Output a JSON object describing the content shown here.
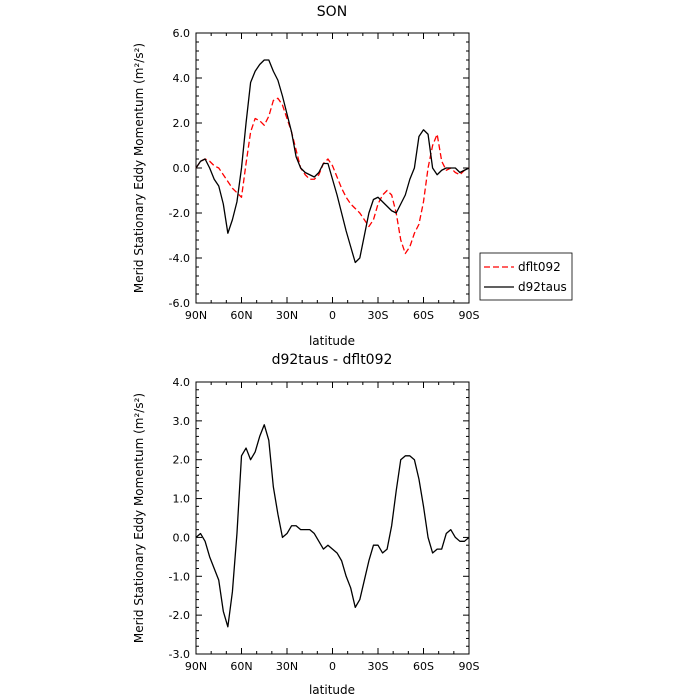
{
  "chart_data": [
    {
      "type": "line",
      "title": "SON",
      "xlabel": "latitude",
      "ylabel": "Merid Stationary Eddy Momentum (m²/s²)",
      "xlim": [
        90,
        -90
      ],
      "ylim": [
        -6,
        6
      ],
      "x_ticks": [
        90,
        60,
        30,
        0,
        -30,
        -60,
        -90
      ],
      "x_tick_labels": [
        "90N",
        "60N",
        "30N",
        "0",
        "30S",
        "60S",
        "90S"
      ],
      "y_ticks": [
        -6,
        -4,
        -2,
        0,
        2,
        4,
        6
      ],
      "y_tick_labels": [
        "-6.0",
        "-4.0",
        "-2.0",
        "0.0",
        "2.0",
        "4.0",
        "6.0"
      ],
      "grid": false,
      "legend_position": "outside-right",
      "series": [
        {
          "name": "dflt092",
          "color": "#ff0000",
          "style": "dashed",
          "x": [
            90,
            87,
            84,
            81,
            78,
            75,
            72,
            69,
            66,
            63,
            60,
            57,
            54,
            51,
            48,
            45,
            42,
            39,
            36,
            33,
            30,
            27,
            24,
            21,
            18,
            15,
            12,
            9,
            6,
            3,
            0,
            -3,
            -6,
            -9,
            -12,
            -15,
            -18,
            -21,
            -24,
            -27,
            -30,
            -33,
            -36,
            -39,
            -42,
            -45,
            -48,
            -51,
            -54,
            -57,
            -60,
            -63,
            -66,
            -69,
            -72,
            -75,
            -78,
            -81,
            -84,
            -87,
            -90
          ],
          "y": [
            0.0,
            0.3,
            0.4,
            0.3,
            0.1,
            0.0,
            -0.3,
            -0.6,
            -0.9,
            -1.1,
            -1.3,
            0.2,
            1.6,
            2.2,
            2.1,
            1.9,
            2.3,
            3.0,
            3.1,
            2.8,
            2.2,
            1.6,
            0.8,
            0.0,
            -0.3,
            -0.5,
            -0.5,
            -0.3,
            0.2,
            0.4,
            0.1,
            -0.4,
            -0.9,
            -1.3,
            -1.6,
            -1.8,
            -2.0,
            -2.3,
            -2.6,
            -2.3,
            -1.6,
            -1.2,
            -1.0,
            -1.2,
            -2.0,
            -3.2,
            -3.8,
            -3.5,
            -2.9,
            -2.5,
            -1.5,
            0.0,
            1.0,
            1.5,
            0.3,
            -0.1,
            0.0,
            -0.2,
            -0.3,
            -0.1,
            0.0
          ]
        },
        {
          "name": "d92taus",
          "color": "#000000",
          "style": "solid",
          "x": [
            90,
            87,
            84,
            81,
            78,
            75,
            72,
            69,
            66,
            63,
            60,
            57,
            54,
            51,
            48,
            45,
            42,
            39,
            36,
            33,
            30,
            27,
            24,
            21,
            18,
            15,
            12,
            9,
            6,
            3,
            0,
            -3,
            -6,
            -9,
            -12,
            -15,
            -18,
            -21,
            -24,
            -27,
            -30,
            -33,
            -36,
            -39,
            -42,
            -45,
            -48,
            -51,
            -54,
            -57,
            -60,
            -63,
            -66,
            -69,
            -72,
            -75,
            -78,
            -81,
            -84,
            -87,
            -90
          ],
          "y": [
            0.0,
            0.3,
            0.4,
            0.0,
            -0.5,
            -0.8,
            -1.6,
            -2.9,
            -2.3,
            -1.5,
            0.0,
            2.0,
            3.8,
            4.3,
            4.6,
            4.8,
            4.8,
            4.3,
            3.9,
            3.2,
            2.4,
            1.6,
            0.5,
            0.0,
            -0.2,
            -0.3,
            -0.4,
            -0.2,
            0.2,
            0.2,
            -0.5,
            -1.2,
            -2.0,
            -2.8,
            -3.5,
            -4.2,
            -4.0,
            -3.0,
            -2.0,
            -1.4,
            -1.3,
            -1.5,
            -1.7,
            -1.9,
            -2.0,
            -1.6,
            -1.2,
            -0.5,
            0.0,
            1.4,
            1.7,
            1.5,
            0.0,
            -0.3,
            -0.1,
            0.0,
            0.0,
            0.0,
            -0.2,
            -0.1,
            0.0
          ]
        }
      ]
    },
    {
      "type": "line",
      "title": "d92taus - dflt092",
      "xlabel": "latitude",
      "ylabel": "Merid Stationary Eddy Momentum (m²/s²)",
      "xlim": [
        90,
        -90
      ],
      "ylim": [
        -3,
        4
      ],
      "x_ticks": [
        90,
        60,
        30,
        0,
        -30,
        -60,
        -90
      ],
      "x_tick_labels": [
        "90N",
        "60N",
        "30N",
        "0",
        "30S",
        "60S",
        "90S"
      ],
      "y_ticks": [
        -3,
        -2,
        -1,
        0,
        1,
        2,
        3,
        4
      ],
      "y_tick_labels": [
        "-3.0",
        "-2.0",
        "-1.0",
        "0.0",
        "1.0",
        "2.0",
        "3.0",
        "4.0"
      ],
      "grid": false,
      "series": [
        {
          "color": "#000000",
          "style": "solid",
          "x": [
            90,
            87,
            84,
            81,
            78,
            75,
            72,
            69,
            66,
            63,
            60,
            57,
            54,
            51,
            48,
            45,
            42,
            39,
            36,
            33,
            30,
            27,
            24,
            21,
            18,
            15,
            12,
            9,
            6,
            3,
            0,
            -3,
            -6,
            -9,
            -12,
            -15,
            -18,
            -21,
            -24,
            -27,
            -30,
            -33,
            -36,
            -39,
            -42,
            -45,
            -48,
            -51,
            -54,
            -57,
            -60,
            -63,
            -66,
            -69,
            -72,
            -75,
            -78,
            -81,
            -84,
            -87,
            -90
          ],
          "y": [
            0.0,
            0.1,
            -0.1,
            -0.5,
            -0.8,
            -1.1,
            -1.9,
            -2.3,
            -1.4,
            0.1,
            2.1,
            2.3,
            2.0,
            2.2,
            2.6,
            2.9,
            2.5,
            1.3,
            0.6,
            0.0,
            0.1,
            0.3,
            0.3,
            0.2,
            0.2,
            0.2,
            0.1,
            -0.1,
            -0.3,
            -0.2,
            -0.3,
            -0.4,
            -0.6,
            -1.0,
            -1.3,
            -1.8,
            -1.6,
            -1.1,
            -0.6,
            -0.2,
            -0.2,
            -0.4,
            -0.3,
            0.3,
            1.2,
            2.0,
            2.1,
            2.1,
            2.0,
            1.5,
            0.8,
            0.0,
            -0.4,
            -0.3,
            -0.3,
            0.1,
            0.2,
            0.0,
            -0.1,
            -0.1,
            0.0
          ]
        }
      ]
    }
  ]
}
